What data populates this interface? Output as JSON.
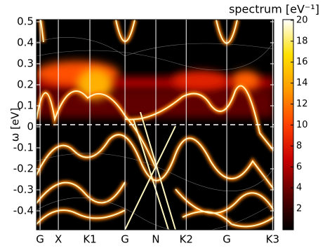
{
  "chart_data": {
    "type": "heatmap",
    "ylabel": "ω [eV]",
    "ylim": [
      -0.49,
      0.51
    ],
    "yticks": [
      -0.4,
      -0.3,
      -0.2,
      -0.1,
      0,
      0.1,
      0.2,
      0.3,
      0.4,
      0.5
    ],
    "kpoints": [
      "G",
      "X",
      "K1",
      "G",
      "N",
      "K2",
      "G",
      "K3"
    ],
    "reference_line": 0.01,
    "grid": true,
    "colorbar": {
      "label": "spectrum [eV⁻¹]",
      "clim": [
        0,
        20.06
      ],
      "ticks": [
        2,
        4,
        6,
        8,
        10,
        12,
        14,
        16,
        18,
        20
      ],
      "colors": [
        "#000000",
        "#5a0000",
        "#c80000",
        "#ff4000",
        "#ff9a00",
        "#ffe000",
        "#ffffff"
      ]
    }
  }
}
